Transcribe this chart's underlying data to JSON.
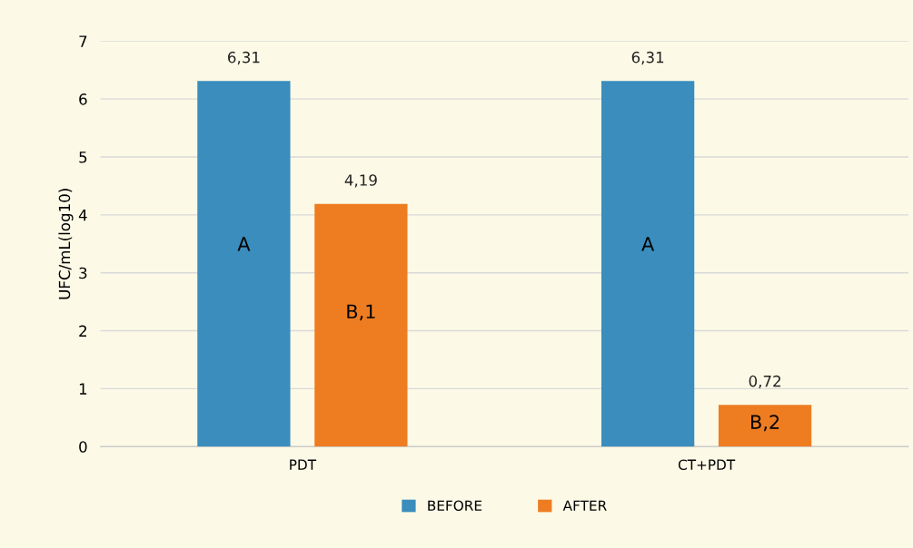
{
  "chart_data": {
    "type": "bar",
    "ylabel": "UFC/mL(log10)",
    "categories": [
      "PDT",
      "CT+PDT"
    ],
    "series": [
      {
        "name": "BEFORE",
        "color": "#3a8dbd",
        "values": [
          6.31,
          6.31
        ],
        "value_labels": [
          "6,31",
          "6,31"
        ]
      },
      {
        "name": "AFTER",
        "color": "#ee7d22",
        "values": [
          4.19,
          0.72
        ],
        "value_labels": [
          "4,19",
          "0,72"
        ]
      }
    ],
    "annotations": [
      "A",
      "B,1",
      "A",
      "B,2"
    ],
    "ylim": [
      0,
      7
    ],
    "yticks": [
      0,
      1,
      2,
      3,
      4,
      5,
      6,
      7
    ],
    "grid": "y",
    "legend": "bottom"
  }
}
